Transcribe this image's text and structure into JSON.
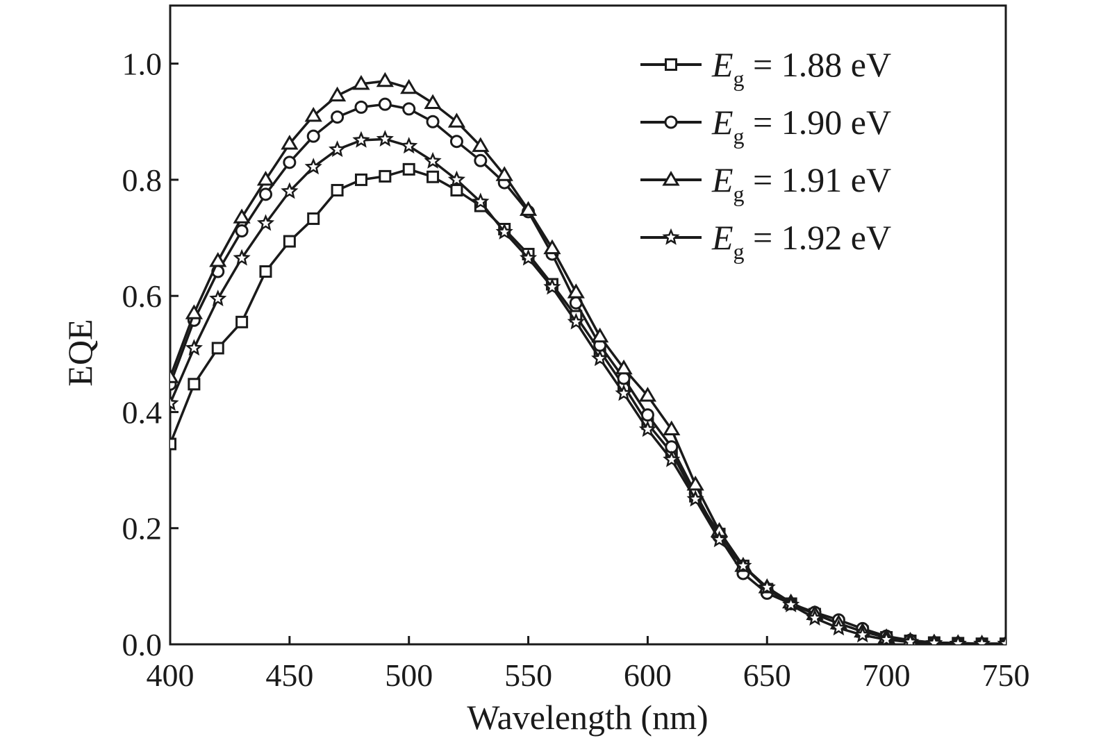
{
  "chart_data": {
    "type": "line",
    "title": "",
    "xlabel": "Wavelength (nm)",
    "ylabel": "EQE",
    "xlim": [
      400,
      750
    ],
    "ylim": [
      0,
      1.1
    ],
    "xticks": [
      400,
      450,
      500,
      550,
      600,
      650,
      700,
      750
    ],
    "yticks": [
      0.0,
      0.2,
      0.4,
      0.6,
      0.8,
      1.0
    ],
    "xtick_labels": [
      "400",
      "450",
      "500",
      "550",
      "600",
      "650",
      "700",
      "750"
    ],
    "ytick_labels": [
      "0.0",
      "0.2",
      "0.4",
      "0.6",
      "0.8",
      "1.0"
    ],
    "grid": false,
    "legend_position": "top-right",
    "x": [
      400,
      410,
      420,
      430,
      440,
      450,
      460,
      470,
      480,
      490,
      500,
      510,
      520,
      530,
      540,
      550,
      560,
      570,
      580,
      590,
      600,
      610,
      620,
      630,
      640,
      650,
      660,
      670,
      680,
      690,
      700,
      710,
      720,
      730,
      740,
      750
    ],
    "series": [
      {
        "name": "Eg = 1.88 eV",
        "label_symbol": "E",
        "label_sub": "g",
        "label_rest": " = 1.88 eV",
        "marker": "square",
        "values": [
          0.345,
          0.448,
          0.51,
          0.555,
          0.642,
          0.694,
          0.733,
          0.782,
          0.8,
          0.806,
          0.818,
          0.805,
          0.782,
          0.755,
          0.715,
          0.672,
          0.62,
          0.565,
          0.505,
          0.445,
          0.38,
          0.33,
          0.255,
          0.19,
          0.135,
          0.095,
          0.07,
          0.052,
          0.036,
          0.022,
          0.012,
          0.006,
          0.003,
          0.002,
          0.001,
          0.001
        ]
      },
      {
        "name": "Eg = 1.90 eV",
        "label_symbol": "E",
        "label_sub": "g",
        "label_rest": " = 1.90 eV",
        "marker": "circle",
        "values": [
          0.448,
          0.558,
          0.642,
          0.712,
          0.775,
          0.83,
          0.875,
          0.908,
          0.925,
          0.93,
          0.922,
          0.9,
          0.866,
          0.833,
          0.795,
          0.745,
          0.672,
          0.588,
          0.515,
          0.458,
          0.395,
          0.34,
          0.26,
          0.185,
          0.122,
          0.088,
          0.07,
          0.055,
          0.042,
          0.027,
          0.014,
          0.007,
          0.003,
          0.002,
          0.001,
          0.001
        ]
      },
      {
        "name": "Eg = 1.91 eV",
        "label_symbol": "E",
        "label_sub": "g",
        "label_rest": " = 1.91 eV",
        "marker": "triangle",
        "values": [
          0.46,
          0.57,
          0.66,
          0.735,
          0.8,
          0.862,
          0.91,
          0.945,
          0.965,
          0.97,
          0.958,
          0.932,
          0.9,
          0.858,
          0.808,
          0.748,
          0.682,
          0.606,
          0.53,
          0.475,
          0.428,
          0.37,
          0.275,
          0.195,
          0.135,
          0.098,
          0.072,
          0.052,
          0.036,
          0.022,
          0.012,
          0.006,
          0.003,
          0.002,
          0.001,
          0.001
        ]
      },
      {
        "name": "Eg = 1.92 eV",
        "label_symbol": "E",
        "label_sub": "g",
        "label_rest": " = 1.92 eV",
        "marker": "star",
        "values": [
          0.415,
          0.51,
          0.595,
          0.665,
          0.725,
          0.78,
          0.822,
          0.852,
          0.868,
          0.87,
          0.858,
          0.832,
          0.8,
          0.762,
          0.71,
          0.665,
          0.615,
          0.555,
          0.492,
          0.432,
          0.37,
          0.318,
          0.25,
          0.18,
          0.135,
          0.098,
          0.068,
          0.045,
          0.028,
          0.016,
          0.008,
          0.004,
          0.002,
          0.001,
          0.001,
          0.001
        ]
      }
    ]
  }
}
